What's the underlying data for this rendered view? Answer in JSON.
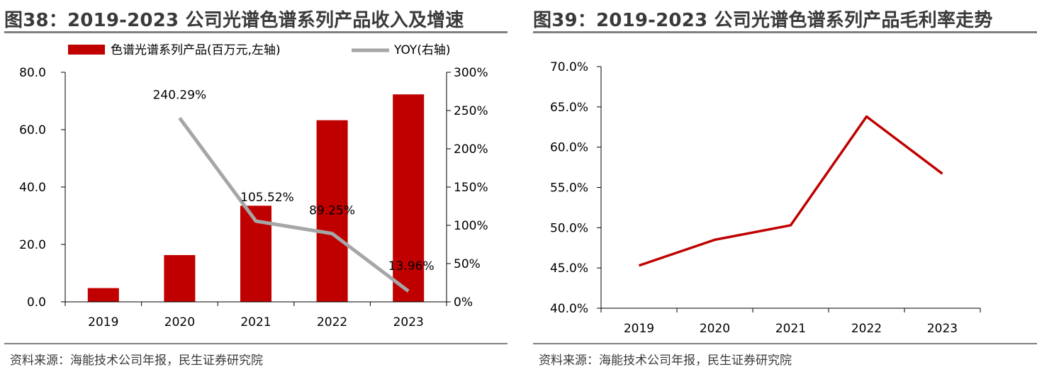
{
  "left": {
    "title": "图38：2019-2023 公司光谱色谱系列产品收入及增速",
    "source": "资料来源：海能技术公司年报，民生证券研究院"
  },
  "right": {
    "title": "图39：2019-2023 公司光谱色谱系列产品毛利率走势",
    "source": "资料来源：海能技术公司年报，民生证券研究院"
  },
  "chart_data": [
    {
      "type": "bar",
      "title": "图38：2019-2023 公司光谱色谱系列产品收入及增速",
      "categories": [
        "2019",
        "2020",
        "2021",
        "2022",
        "2023"
      ],
      "series": [
        {
          "name": "色谱光谱系列产品(百万元,左轴)",
          "type": "bar",
          "axis": "left",
          "color": "#c00000",
          "values": [
            4.8,
            16.3,
            33.5,
            63.3,
            72.3
          ]
        },
        {
          "name": "YOY(右轴)",
          "type": "line",
          "axis": "right",
          "color": "#a6a6a6",
          "values": [
            null,
            240.29,
            105.52,
            89.25,
            13.96
          ],
          "labels": [
            "",
            "240.29%",
            "105.52%",
            "89.25%",
            "13.96%"
          ]
        }
      ],
      "y_left": {
        "min": 0,
        "max": 80,
        "ticks": [
          0,
          20,
          40,
          60,
          80
        ],
        "tick_labels": [
          "0.0",
          "20.0",
          "40.0",
          "60.0",
          "80.0"
        ]
      },
      "y_right": {
        "min": 0,
        "max": 300,
        "ticks": [
          0,
          50,
          100,
          150,
          200,
          250,
          300
        ],
        "tick_labels": [
          "0%",
          "50%",
          "100%",
          "150%",
          "200%",
          "250%",
          "300%"
        ]
      },
      "legend": "top",
      "grid": false
    },
    {
      "type": "line",
      "title": "图39：2019-2023 公司光谱色谱系列产品毛利率走势",
      "categories": [
        "2019",
        "2020",
        "2021",
        "2022",
        "2023"
      ],
      "series": [
        {
          "color": "#c00000",
          "values": [
            45.3,
            48.5,
            50.3,
            63.8,
            56.7
          ]
        }
      ],
      "y": {
        "min": 40,
        "max": 70,
        "ticks": [
          40,
          45,
          50,
          55,
          60,
          65,
          70
        ],
        "tick_labels": [
          "40.0%",
          "45.0%",
          "50.0%",
          "55.0%",
          "60.0%",
          "65.0%",
          "70.0%"
        ]
      },
      "legend": "none",
      "grid": false
    }
  ]
}
